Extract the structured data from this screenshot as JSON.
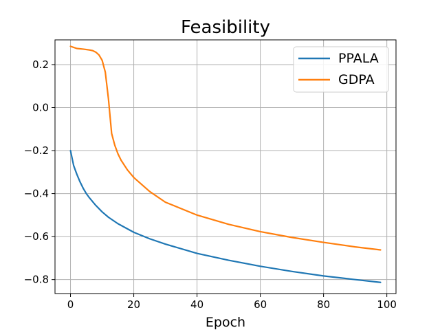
{
  "chart_data": {
    "type": "line",
    "title": "Feasibility",
    "xlabel": "Epoch",
    "ylabel": "",
    "xlim": [
      -4.9,
      102.9
    ],
    "ylim": [
      -0.865,
      0.315
    ],
    "xticks": [
      0,
      20,
      40,
      60,
      80,
      100
    ],
    "yticks": [
      -0.8,
      -0.6,
      -0.4,
      -0.2,
      0.0,
      0.2
    ],
    "xtick_labels": [
      "0",
      "20",
      "40",
      "60",
      "80",
      "100"
    ],
    "ytick_labels": [
      "−0.8",
      "−0.6",
      "−0.4",
      "−0.2",
      "0.0",
      "0.2"
    ],
    "grid": true,
    "legend_position": "top-right",
    "series": [
      {
        "name": "PPALA",
        "color": "#1f77b4",
        "x": [
          0,
          1,
          2,
          3,
          4,
          5,
          6,
          8,
          10,
          12,
          15,
          20,
          25,
          30,
          40,
          50,
          60,
          70,
          80,
          90,
          98
        ],
        "y": [
          -0.2,
          -0.27,
          -0.31,
          -0.345,
          -0.375,
          -0.4,
          -0.42,
          -0.455,
          -0.485,
          -0.51,
          -0.54,
          -0.58,
          -0.61,
          -0.635,
          -0.678,
          -0.71,
          -0.738,
          -0.762,
          -0.783,
          -0.8,
          -0.813
        ]
      },
      {
        "name": "GDPA",
        "color": "#ff7f0e",
        "x": [
          0,
          1,
          2,
          4,
          6,
          7,
          8,
          9,
          10,
          11,
          12,
          13,
          14,
          15,
          16,
          18,
          20,
          25,
          30,
          40,
          50,
          60,
          70,
          80,
          90,
          98
        ],
        "y": [
          0.285,
          0.28,
          0.275,
          0.272,
          0.268,
          0.265,
          0.258,
          0.245,
          0.22,
          0.165,
          0.04,
          -0.12,
          -0.175,
          -0.215,
          -0.245,
          -0.29,
          -0.325,
          -0.39,
          -0.44,
          -0.5,
          -0.543,
          -0.577,
          -0.604,
          -0.627,
          -0.648,
          -0.662
        ]
      }
    ]
  }
}
